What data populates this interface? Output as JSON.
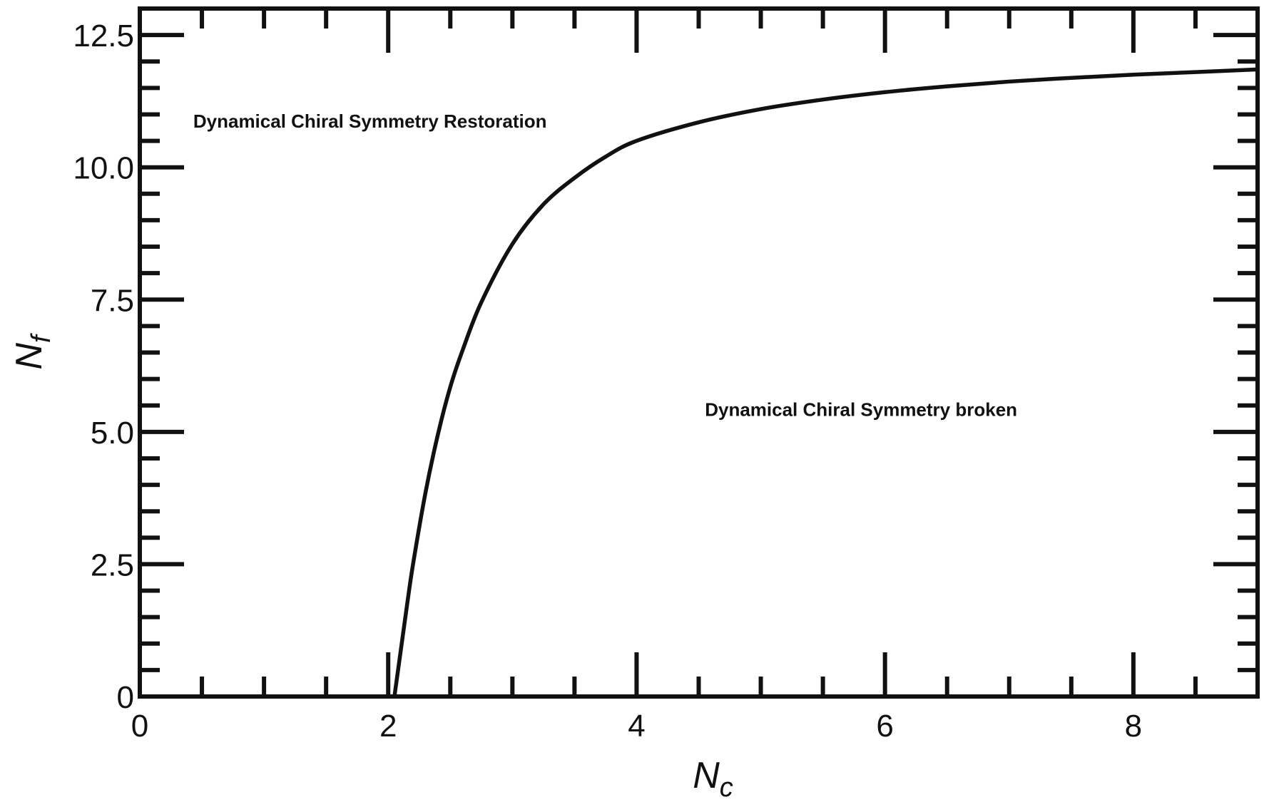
{
  "chart_data": {
    "type": "line",
    "title": "",
    "xlabel": {
      "main": "N",
      "sub": "c"
    },
    "ylabel": {
      "main": "N",
      "sub": "f"
    },
    "xlim": [
      0,
      9
    ],
    "ylim": [
      0,
      13
    ],
    "x_ticks": [
      0,
      2,
      4,
      6,
      8
    ],
    "x_tick_labels": [
      "0",
      "2",
      "4",
      "6",
      "8"
    ],
    "x_minor_step": 0.5,
    "y_ticks": [
      0,
      2.5,
      5,
      7.5,
      10,
      12.5
    ],
    "y_tick_labels": [
      "0",
      "2.5",
      "5.0",
      "7.5",
      "10.0",
      "12.5"
    ],
    "y_minor_step": 0.5,
    "grid": false,
    "legend": "none",
    "series": [
      {
        "color": "#111111",
        "x": [
          2.05,
          2.1,
          2.15,
          2.2,
          2.3,
          2.4,
          2.5,
          2.6,
          2.75,
          3.0,
          3.25,
          3.5,
          3.75,
          4.0,
          4.5,
          5.0,
          5.5,
          6.0,
          6.5,
          7.0,
          7.5,
          8.0,
          8.5,
          9.0
        ],
        "y": [
          0.0,
          0.85,
          1.7,
          2.5,
          3.85,
          4.95,
          5.85,
          6.55,
          7.45,
          8.55,
          9.3,
          9.8,
          10.2,
          10.5,
          10.85,
          11.1,
          11.28,
          11.42,
          11.53,
          11.62,
          11.69,
          11.75,
          11.8,
          11.85
        ]
      }
    ],
    "annotations": [
      {
        "text": "Dynamical Chiral Symmetry Restoration",
        "x": 0.43,
        "y": 10.75
      },
      {
        "text": "Dynamical Chiral Symmetry broken",
        "x": 4.55,
        "y": 5.3
      }
    ]
  }
}
